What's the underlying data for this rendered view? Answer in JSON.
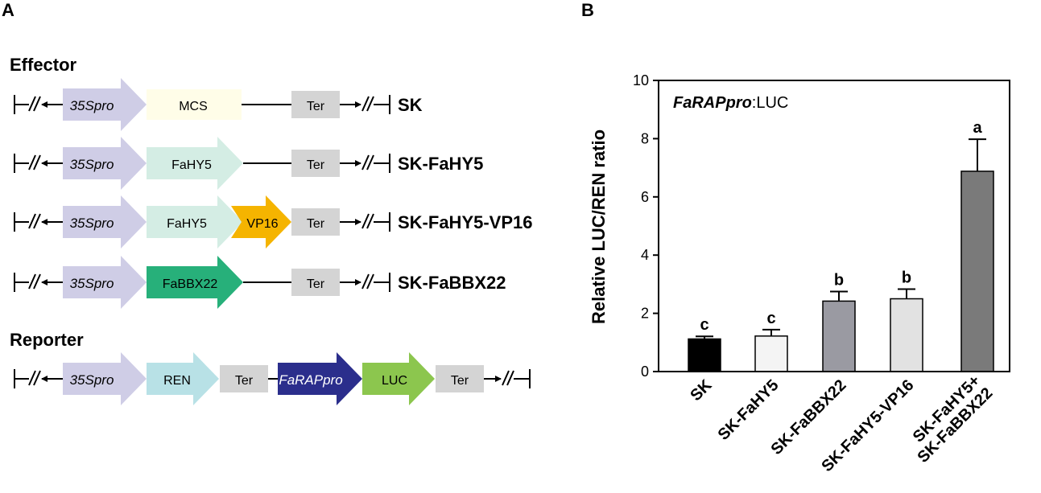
{
  "panel_a": {
    "label": "A",
    "effector_title": "Effector",
    "reporter_title": "Reporter",
    "promoter": "35Spro",
    "terminator": "Ter",
    "constructs": [
      {
        "name": "SK",
        "parts": [
          "MCS"
        ]
      },
      {
        "name": "SK-FaHY5",
        "parts": [
          "FaHY5"
        ]
      },
      {
        "name": "SK-FaHY5-VP16",
        "parts": [
          "FaHY5",
          "VP16"
        ]
      },
      {
        "name": "SK-FaBBX22",
        "parts": [
          "FaBBX22"
        ]
      }
    ],
    "reporter": {
      "parts": [
        "35Spro",
        "REN",
        "Ter",
        "FaRAPpro",
        "LUC",
        "Ter"
      ]
    },
    "colors": {
      "promoter": "#cfcde6",
      "mcs": "#fffde8",
      "fahy5": "#d4ede4",
      "vp16": "#f5b400",
      "fabbx22": "#27b07a",
      "terminator": "#d4d4d4",
      "ren": "#b8e1e6",
      "farappro": "#2b2e8c",
      "luc": "#8cc64e"
    }
  },
  "panel_b": {
    "label": "B",
    "inset_label_italic": "FaRAPpro",
    "inset_label_rest": ":LUC"
  },
  "chart_data": {
    "type": "bar",
    "categories": [
      "SK",
      "SK-FaHY5",
      "SK-FaBBX22",
      "SK-FaHY5-VP16",
      "SK-FaHY5+\nSK-FaBBX22"
    ],
    "values": [
      1.12,
      1.22,
      2.42,
      2.5,
      6.88
    ],
    "errors": [
      0.09,
      0.22,
      0.33,
      0.33,
      1.1
    ],
    "significance": [
      "c",
      "c",
      "b",
      "b",
      "a"
    ],
    "bar_colors": [
      "#000000",
      "#f4f4f4",
      "#9a9aa2",
      "#e2e2e2",
      "#7a7a7a"
    ],
    "ylabel": "Relative LUC/REN ratio",
    "ylim": [
      0,
      10
    ],
    "yticks": [
      0,
      2,
      4,
      6,
      8,
      10
    ]
  }
}
